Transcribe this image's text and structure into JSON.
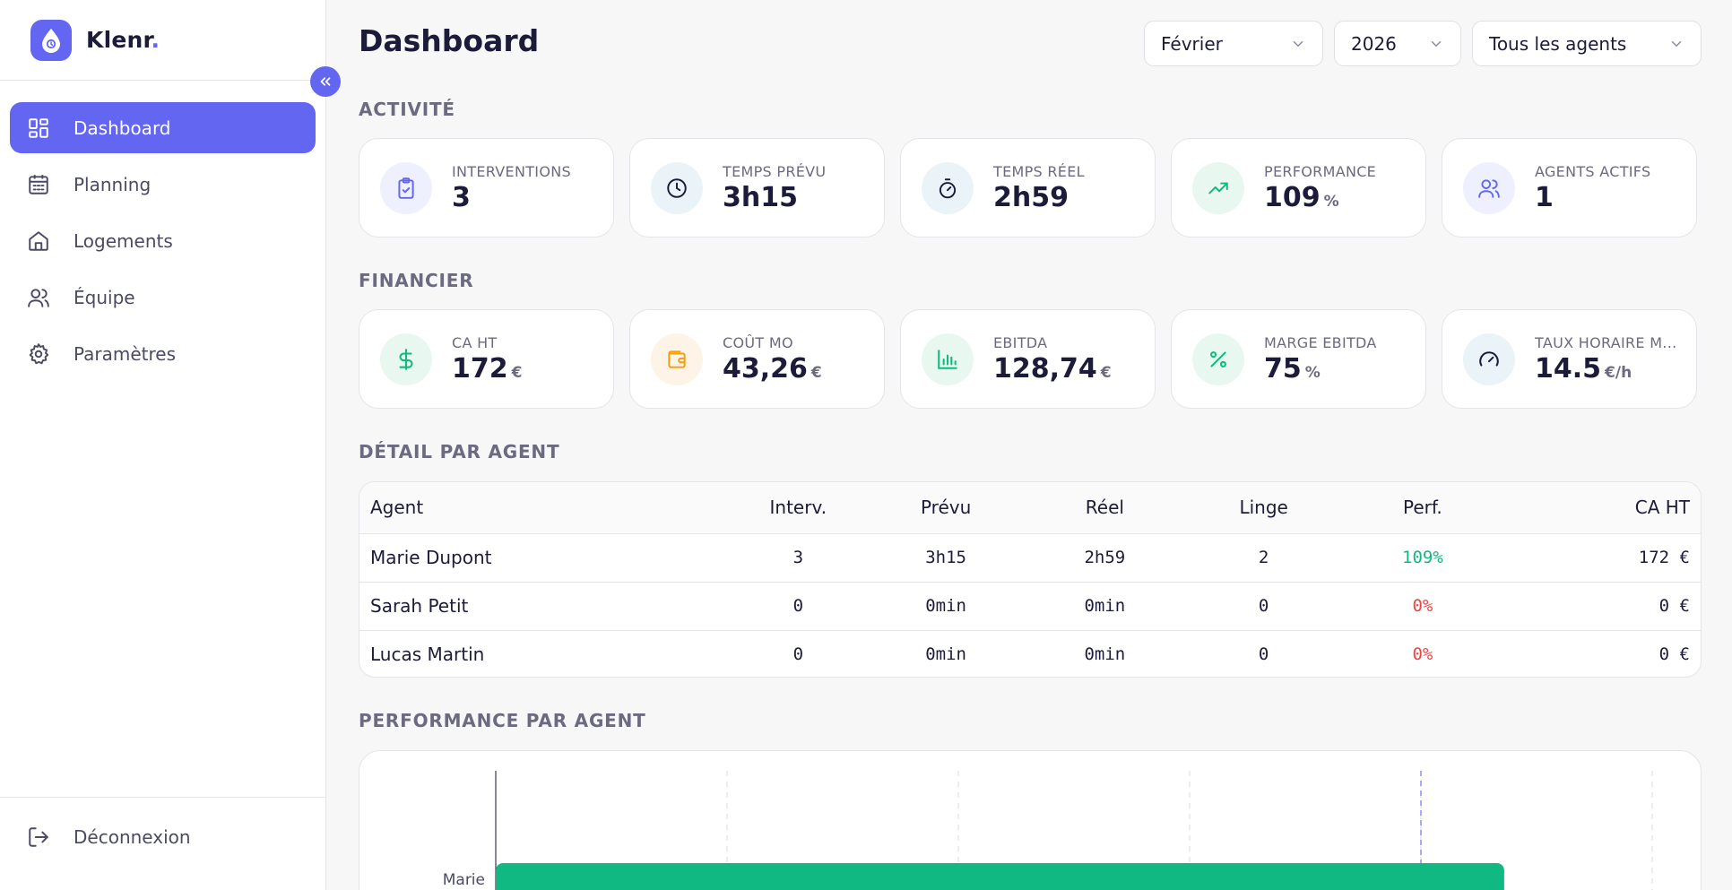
{
  "app": {
    "name": "Klenr",
    "dot": "."
  },
  "colors": {
    "accent": "#6366f1",
    "positive": "#10b981",
    "negative": "#ef4444"
  },
  "sidebar": {
    "items": [
      {
        "label": "Dashboard",
        "icon": "dashboard-grid-icon",
        "active": true
      },
      {
        "label": "Planning",
        "icon": "calendar-icon"
      },
      {
        "label": "Logements",
        "icon": "home-icon"
      },
      {
        "label": "Équipe",
        "icon": "users-icon"
      },
      {
        "label": "Paramètres",
        "icon": "gear-icon"
      }
    ],
    "logout_label": "Déconnexion"
  },
  "header": {
    "title": "Dashboard",
    "filters": {
      "month": "Février",
      "year": "2026",
      "agent": "Tous les agents"
    }
  },
  "activity": {
    "title": "ACTIVITÉ",
    "cards": [
      {
        "label": "INTERVENTIONS",
        "value": "3",
        "unit": "",
        "icon": "clipboard-check-icon"
      },
      {
        "label": "TEMPS PRÉVU",
        "value": "3h15",
        "unit": "",
        "icon": "clock-icon"
      },
      {
        "label": "TEMPS RÉEL",
        "value": "2h59",
        "unit": "",
        "icon": "stopwatch-icon"
      },
      {
        "label": "PERFORMANCE",
        "value": "109",
        "unit": "%",
        "icon": "trending-up-icon"
      },
      {
        "label": "AGENTS ACTIFS",
        "value": "1",
        "unit": "",
        "icon": "users-icon"
      }
    ]
  },
  "financial": {
    "title": "FINANCIER",
    "cards": [
      {
        "label": "CA HT",
        "value": "172",
        "unit": "€",
        "icon": "dollar-icon"
      },
      {
        "label": "COÛT MO",
        "value": "43,26",
        "unit": "€",
        "icon": "wallet-icon"
      },
      {
        "label": "EBITDA",
        "value": "128,74",
        "unit": "€",
        "icon": "bar-chart-icon"
      },
      {
        "label": "MARGE EBITDA",
        "value": "75",
        "unit": "%",
        "icon": "percent-icon"
      },
      {
        "label": "TAUX HORAIRE M...",
        "value": "14.5",
        "unit": "€/h",
        "icon": "gauge-icon"
      }
    ]
  },
  "agents_table": {
    "title": "DÉTAIL PAR AGENT",
    "columns": [
      "Agent",
      "Interv.",
      "Prévu",
      "Réel",
      "Linge",
      "Perf.",
      "CA HT"
    ],
    "rows": [
      {
        "agent": "Marie Dupont",
        "interv": "3",
        "prevu": "3h15",
        "reel": "2h59",
        "linge": "2",
        "perf": "109%",
        "perf_status": "positive",
        "ca": "172 €"
      },
      {
        "agent": "Sarah Petit",
        "interv": "0",
        "prevu": "0min",
        "reel": "0min",
        "linge": "0",
        "perf": "0%",
        "perf_status": "negative",
        "ca": "0 €"
      },
      {
        "agent": "Lucas Martin",
        "interv": "0",
        "prevu": "0min",
        "reel": "0min",
        "linge": "0",
        "perf": "0%",
        "perf_status": "negative",
        "ca": "0 €"
      }
    ]
  },
  "performance_chart": {
    "title": "PERFORMANCE PAR AGENT",
    "chart_data": {
      "type": "bar",
      "orientation": "horizontal",
      "categories": [
        "Marie"
      ],
      "values": [
        109
      ],
      "xlim": [
        0,
        125
      ],
      "reference_line": 100,
      "grid": true
    }
  }
}
